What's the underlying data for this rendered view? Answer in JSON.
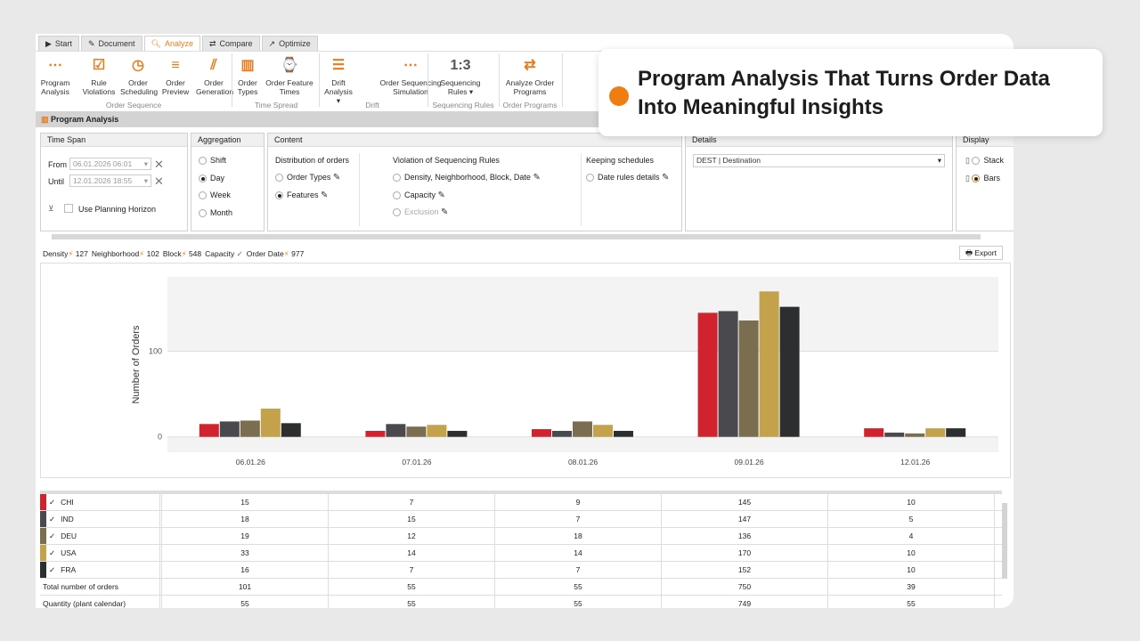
{
  "tabs": [
    {
      "label": "Start",
      "icon": "play-icon"
    },
    {
      "label": "Document",
      "icon": "pencil-icon"
    },
    {
      "label": "Analyze",
      "icon": "search-icon",
      "active": true
    },
    {
      "label": "Compare",
      "icon": "swap-icon"
    },
    {
      "label": "Optimize",
      "icon": "trend-icon"
    }
  ],
  "ribbon": {
    "buttons": [
      {
        "l1": "Program",
        "l2": "Analysis",
        "icon": "program-analysis-icon"
      },
      {
        "l1": "Rule",
        "l2": "Violations",
        "icon": "rule-violations-icon"
      },
      {
        "l1": "Order",
        "l2": "Scheduling",
        "icon": "clock-icon"
      },
      {
        "l1": "Order",
        "l2": "Preview",
        "icon": "preview-icon"
      },
      {
        "l1": "Order",
        "l2": "Generation",
        "icon": "generation-icon"
      },
      {
        "l1": "Order",
        "l2": "Types",
        "icon": "bar-chart-icon"
      },
      {
        "l1": "Order Feature",
        "l2": "Times",
        "icon": "feature-time-icon"
      },
      {
        "l1": "Drift",
        "l2": "Analysis ▾",
        "icon": "drift-icon"
      },
      {
        "l1": "Order Sequencing",
        "l2": "Simulation",
        "icon": "simulation-icon"
      },
      {
        "l1": "Sequencing",
        "l2": "Rules ▾",
        "icon": "ratio-icon",
        "glyph": "1:3"
      },
      {
        "l1": "Analyze Order",
        "l2": "Programs",
        "icon": "analyze-programs-icon"
      }
    ],
    "groups": [
      "Order Sequence",
      "Time Spread",
      "Drift",
      "Sequencing Rules",
      "Order Programs"
    ]
  },
  "section_title": "Program Analysis",
  "time_span": {
    "title": "Time Span",
    "from_label": "From",
    "from_value": "06.01.2026 06:01",
    "until_label": "Until",
    "until_value": "12.01.2026 18:55",
    "horizon_label": "Use Planning Horizon"
  },
  "aggregation": {
    "title": "Aggregation",
    "options": [
      "Shift",
      "Day",
      "Week",
      "Month"
    ],
    "selected": "Day"
  },
  "content": {
    "title": "Content",
    "distribution": {
      "title": "Distribution of orders",
      "options": [
        "Order Types",
        "Features"
      ],
      "selected": "Features"
    },
    "violation": {
      "title": "Violation of Sequencing Rules",
      "options": [
        "Density, Neighborhood, Block, Date",
        "Capacity",
        "Exclusion"
      ]
    },
    "schedules": {
      "title": "Keeping schedules",
      "options": [
        "Date rules details"
      ]
    }
  },
  "details": {
    "title": "Details",
    "value": "DEST | Destination"
  },
  "display": {
    "title": "Display",
    "options": [
      "Stack",
      "Bars"
    ],
    "selected": "Bars"
  },
  "summary": [
    {
      "label": "Density",
      "value": "127"
    },
    {
      "label": "Neighborhood",
      "value": "102"
    },
    {
      "label": "Block",
      "value": "548"
    },
    {
      "label": "Capacity",
      "value": "✓"
    },
    {
      "label": "Order Date",
      "value": "977"
    }
  ],
  "export_label": "Export",
  "chart_data": {
    "type": "bar",
    "categories": [
      "06.01.26",
      "07.01.26",
      "08.01.26",
      "09.01.26",
      "12.01.26"
    ],
    "ylabel": "Number of Orders",
    "yticks": [
      "0",
      "100"
    ],
    "ylim": [
      -18,
      187
    ],
    "grid": true,
    "series": [
      {
        "name": "CHI",
        "color": "#d0232f",
        "values": [
          15,
          7,
          9,
          145,
          10
        ]
      },
      {
        "name": "IND",
        "color": "#4a494e",
        "values": [
          18,
          15,
          7,
          147,
          5
        ]
      },
      {
        "name": "DEU",
        "color": "#7a6d50",
        "values": [
          19,
          12,
          18,
          136,
          4
        ]
      },
      {
        "name": "USA",
        "color": "#c4a24c",
        "values": [
          33,
          14,
          14,
          170,
          10
        ]
      },
      {
        "name": "FRA",
        "color": "#2c2e30",
        "values": [
          16,
          7,
          7,
          152,
          10
        ]
      }
    ]
  },
  "table": {
    "totals": [
      {
        "label": "Total number of orders",
        "values": [
          "101",
          "55",
          "55",
          "750",
          "39"
        ]
      },
      {
        "label": "Quantity (plant calendar)",
        "values": [
          "55",
          "55",
          "55",
          "749",
          "55"
        ]
      }
    ]
  },
  "callout": {
    "text": "Program Analysis That Turns Order Data Into Meaningful Insights",
    "color": "#ef7d12"
  }
}
